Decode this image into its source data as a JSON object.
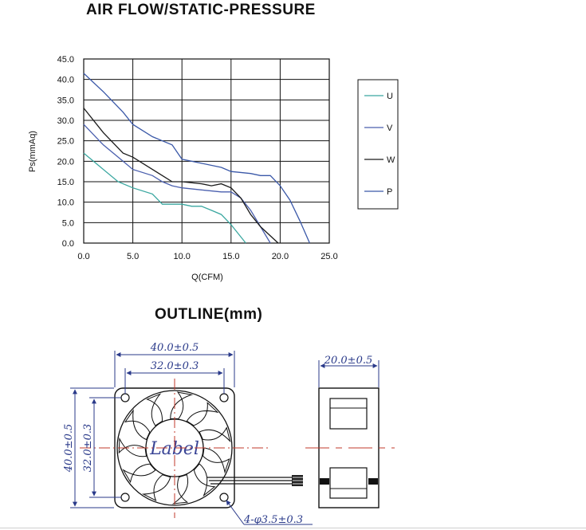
{
  "chart_data": {
    "type": "line",
    "title": "AIR FLOW/STATIC-PRESSURE",
    "xlabel": "Q(CFM)",
    "ylabel": "Ps(mmAq)",
    "xlim": [
      0,
      25
    ],
    "ylim": [
      0,
      45
    ],
    "x_ticks": [
      "0.0",
      "5.0",
      "10.0",
      "15.0",
      "20.0",
      "25.0"
    ],
    "y_ticks": [
      "0.0",
      "5.0",
      "10.0",
      "15.0",
      "20.0",
      "25.0",
      "30.0",
      "35.0",
      "40.0",
      "45.0"
    ],
    "grid": true,
    "legend_position": "right",
    "series": [
      {
        "name": "U",
        "color": "#3aa7a0",
        "x": [
          0,
          1.5,
          3.5,
          5,
          7,
          8,
          9,
          10,
          11,
          12,
          13,
          14,
          15,
          16.5
        ],
        "y": [
          22,
          19,
          15,
          13.5,
          12,
          9.5,
          9.5,
          9.5,
          9,
          9,
          8,
          7,
          4.5,
          0
        ]
      },
      {
        "name": "V",
        "color": "#4a5fae",
        "x": [
          0,
          2,
          4,
          5,
          7,
          8,
          9,
          10,
          12,
          14,
          15,
          16,
          17,
          18,
          19
        ],
        "y": [
          29,
          24,
          20,
          18,
          16.5,
          15,
          14,
          13.5,
          13,
          12.5,
          12.5,
          11,
          8,
          4,
          0
        ]
      },
      {
        "name": "W",
        "color": "#1a1a1a",
        "x": [
          0,
          2,
          4,
          5,
          7,
          8,
          9,
          10,
          12,
          13,
          14,
          15,
          16,
          17,
          18,
          19.8
        ],
        "y": [
          33,
          27,
          22,
          21,
          18,
          16.5,
          15,
          15,
          14.5,
          14,
          14.5,
          13.5,
          11,
          7,
          4,
          0
        ]
      },
      {
        "name": "P",
        "color": "#3a58a8",
        "x": [
          0,
          2,
          4,
          5,
          6,
          7,
          8,
          9,
          10,
          12,
          14,
          15,
          17,
          18,
          19,
          20,
          21,
          22,
          23
        ],
        "y": [
          41.5,
          37,
          32,
          29,
          27.5,
          26,
          25,
          24,
          20.5,
          19.5,
          18.5,
          17.5,
          17,
          16.5,
          16.5,
          14,
          10.5,
          5.5,
          0
        ]
      }
    ]
  },
  "outline": {
    "title": "OUTLINE(mm)",
    "dim_width": "40.0±0.5",
    "dim_hole_span": "32.0±0.3",
    "dim_height": "40.0±0.5",
    "dim_hole_span_v": "32.0±0.3",
    "dim_depth": "20.0±0.5",
    "dim_holes": "4-φ3.5±0.3",
    "label": "Label"
  }
}
